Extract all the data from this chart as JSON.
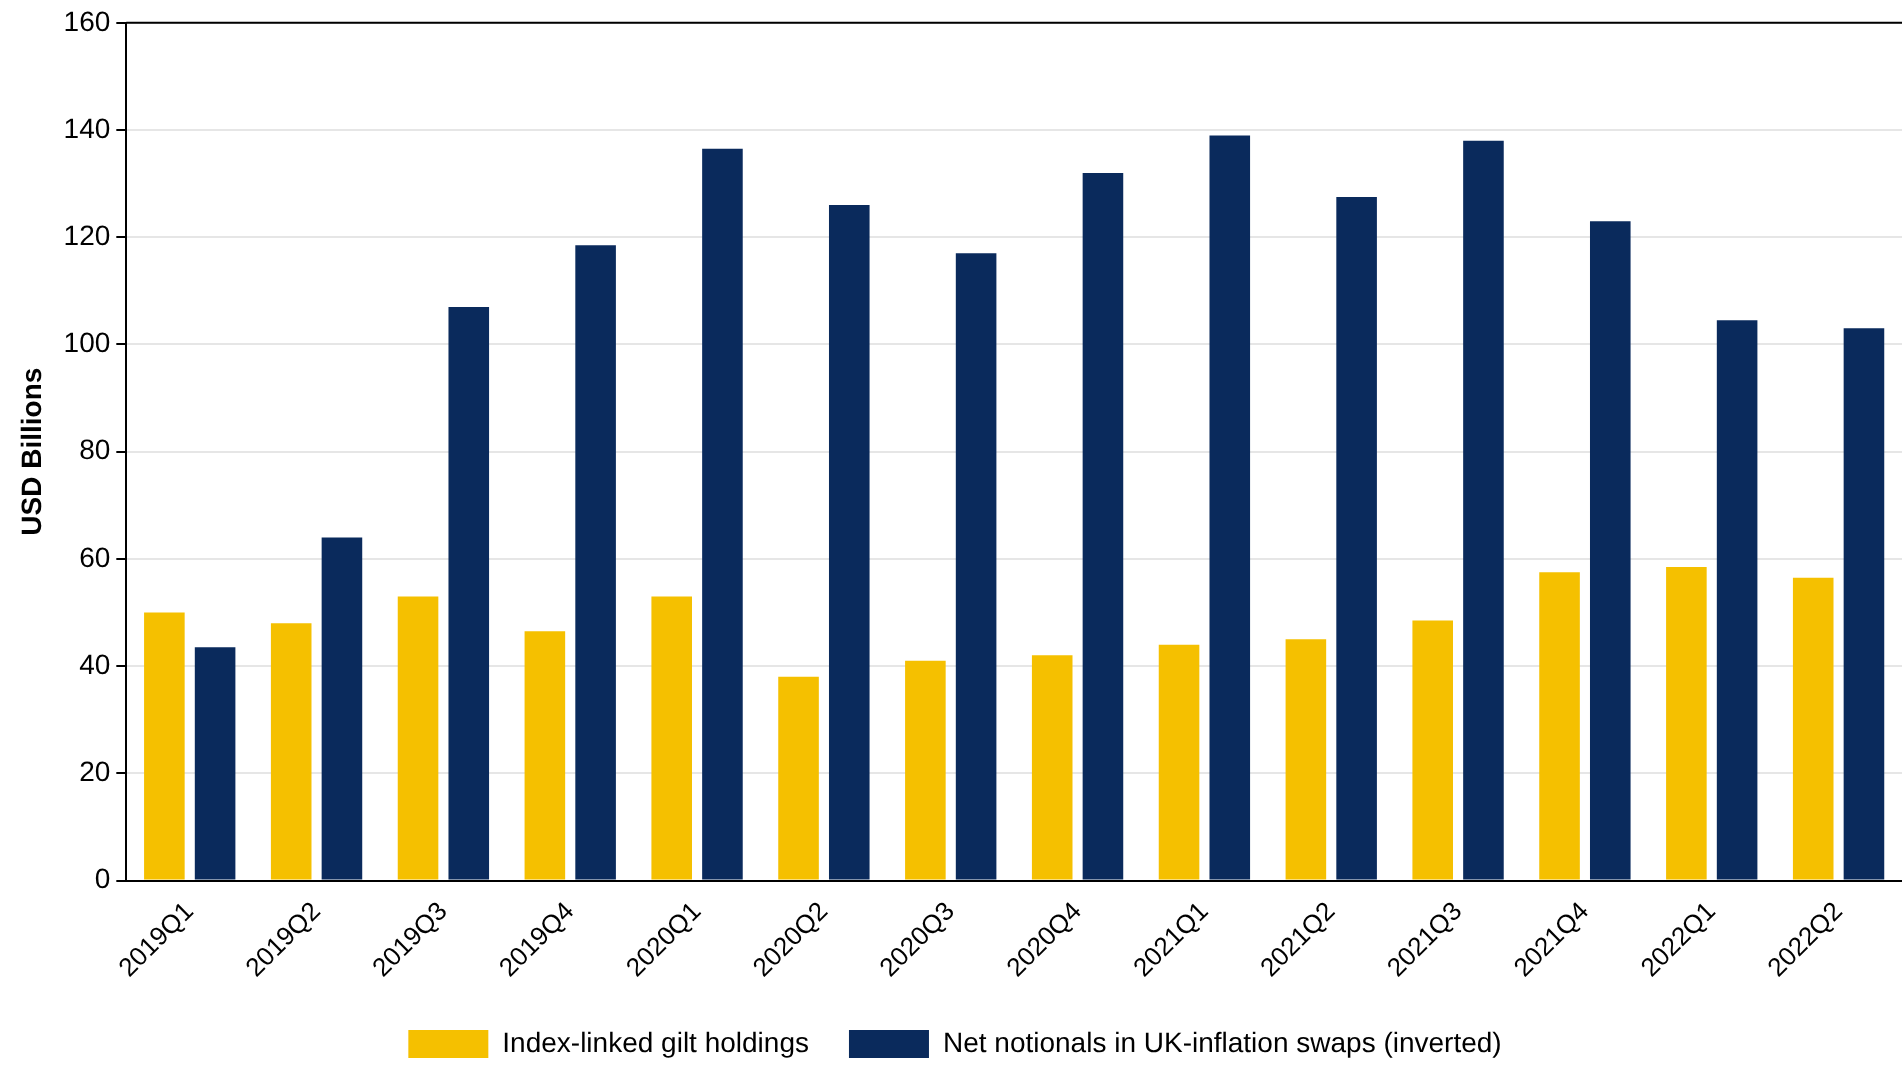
{
  "chart_data": {
    "type": "bar",
    "ylabel": "USD Billions",
    "categories": [
      "2019Q1",
      "2019Q2",
      "2019Q3",
      "2019Q4",
      "2020Q1",
      "2020Q2",
      "2020Q3",
      "2020Q4",
      "2021Q1",
      "2021Q2",
      "2021Q3",
      "2021Q4",
      "2022Q1",
      "2022Q2"
    ],
    "series": [
      {
        "name": "Index-linked gilt holdings",
        "color": "#f5c000",
        "values": [
          50,
          48,
          53,
          46.5,
          53,
          38,
          41,
          42,
          44,
          45,
          48.5,
          57.5,
          58.5,
          56.5
        ]
      },
      {
        "name": "Net notionals in UK-inflation swaps (inverted)",
        "color": "#0a2a5c",
        "values": [
          43.5,
          64,
          107,
          118.5,
          136.5,
          126,
          117,
          132,
          139,
          127.5,
          138,
          123,
          104.5,
          103
        ]
      }
    ],
    "ylim": [
      0,
      160
    ],
    "yticks": [
      0,
      20,
      40,
      60,
      80,
      100,
      120,
      140,
      160
    ],
    "grid": "y",
    "legend": "bottom"
  }
}
